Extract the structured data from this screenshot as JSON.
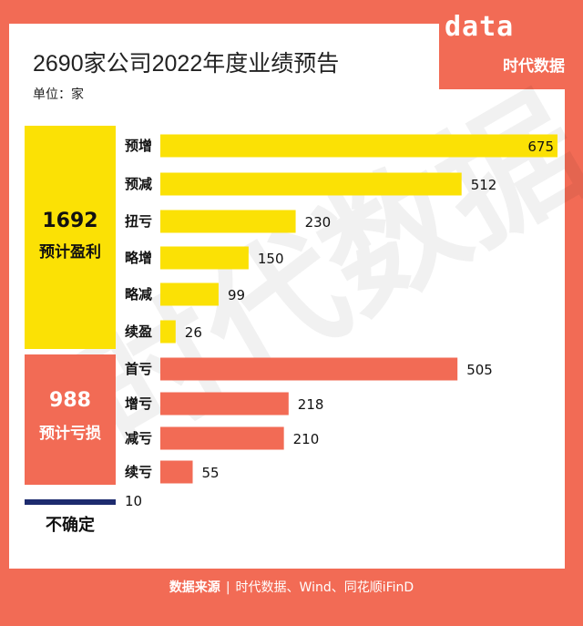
{
  "title": "2690家公司2022年度业绩预告",
  "unit": "单位：家",
  "logo": {
    "script": "data",
    "name": "时代数据"
  },
  "watermark": "时代数据",
  "groups": {
    "profit": {
      "total": "1692",
      "label": "预计盈利"
    },
    "loss": {
      "total": "988",
      "label": "预计亏损"
    },
    "unsure": {
      "label": "不确定"
    }
  },
  "footer": {
    "label": "数据来源",
    "sep": "|",
    "source": "时代数据、Wind、同花顺iFinD"
  },
  "colors": {
    "profit": "#FBE105",
    "loss": "#F26B55",
    "unsure": "#1D2B6E",
    "frame": "#F26B55"
  },
  "chart_data": {
    "type": "bar",
    "orientation": "horizontal",
    "categories": [
      "预增",
      "预减",
      "扭亏",
      "略增",
      "略减",
      "续盈",
      "首亏",
      "增亏",
      "减亏",
      "续亏",
      ""
    ],
    "values": [
      675,
      512,
      230,
      150,
      99,
      26,
      505,
      218,
      210,
      55,
      10
    ],
    "groups": [
      "profit",
      "profit",
      "profit",
      "profit",
      "profit",
      "profit",
      "loss",
      "loss",
      "loss",
      "loss",
      "unsure"
    ],
    "title": "2690家公司2022年度业绩预告",
    "xlabel": "",
    "ylabel": "",
    "xlim": [
      0,
      675
    ],
    "grid": false
  }
}
